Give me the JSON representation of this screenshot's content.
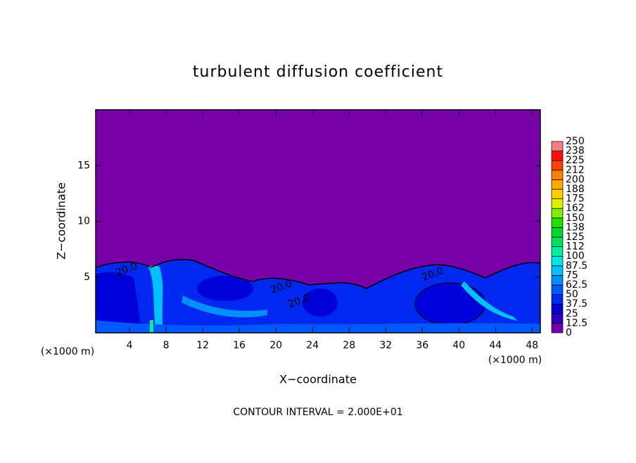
{
  "chart_data": {
    "type": "contour",
    "title": "turbulent diffusion coefficient",
    "xlabel": "X−coordinate",
    "ylabel": "Z−coordinate",
    "x_unit": "(×1000 m)",
    "y_unit": "(×1000 m)",
    "footer": "CONTOUR INTERVAL = 2.000E+01",
    "contour_labels": [
      "20.0",
      "20.0",
      "20.0",
      "20.0"
    ],
    "xlim": [
      0.3,
      48.9
    ],
    "ylim": [
      0,
      20
    ],
    "xticks": [
      4,
      8,
      12,
      16,
      20,
      24,
      28,
      32,
      36,
      40,
      44,
      48
    ],
    "yticks": [
      5,
      10,
      15
    ],
    "colorbar": {
      "levels": [
        0,
        12.5,
        25,
        37.5,
        50,
        62.5,
        75,
        87.5,
        100,
        112,
        125,
        138,
        150,
        162,
        175,
        188,
        200,
        212,
        225,
        238,
        250
      ],
      "colors": [
        "#7800a8",
        "#3000c0",
        "#0000d8",
        "#0028f0",
        "#0058ff",
        "#0090ff",
        "#00c0ff",
        "#00e8e0",
        "#00f0a0",
        "#00e060",
        "#00d830",
        "#20e000",
        "#80f000",
        "#e0f000",
        "#ffd000",
        "#ffa800",
        "#ff8000",
        "#ff4000",
        "#ff1010",
        "#f08080"
      ]
    }
  }
}
